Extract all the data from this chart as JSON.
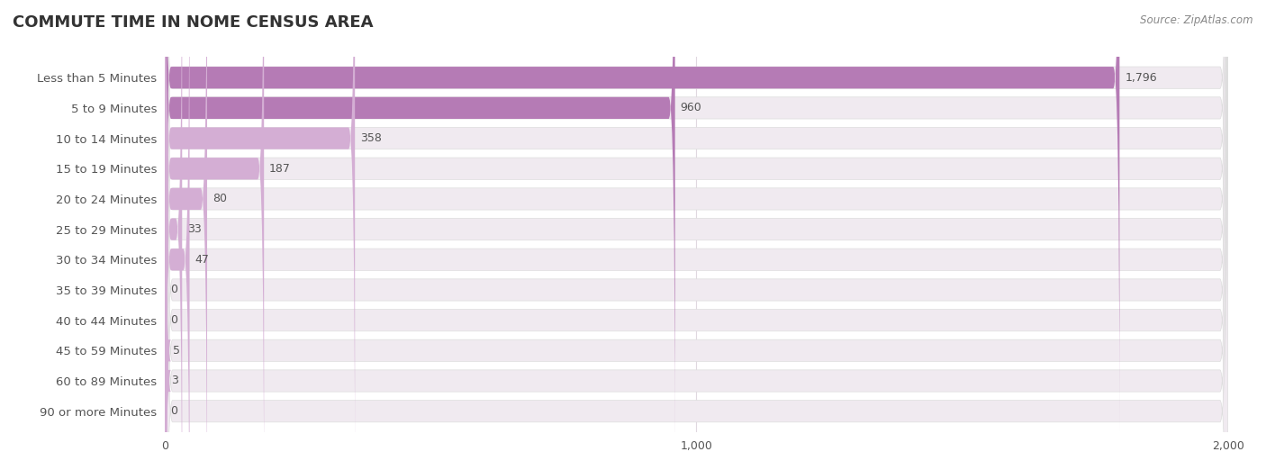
{
  "title": "COMMUTE TIME IN NOME CENSUS AREA",
  "source": "Source: ZipAtlas.com",
  "categories": [
    "Less than 5 Minutes",
    "5 to 9 Minutes",
    "10 to 14 Minutes",
    "15 to 19 Minutes",
    "20 to 24 Minutes",
    "25 to 29 Minutes",
    "30 to 34 Minutes",
    "35 to 39 Minutes",
    "40 to 44 Minutes",
    "45 to 59 Minutes",
    "60 to 89 Minutes",
    "90 or more Minutes"
  ],
  "values": [
    1796,
    960,
    358,
    187,
    80,
    33,
    47,
    0,
    0,
    5,
    3,
    0
  ],
  "bar_color_dark": "#b57bb5",
  "bar_color_light": "#d4aed4",
  "bar_bg_color": "#f0eaf0",
  "row_bg_color_1": "#f9f7f9",
  "row_bg_color_2": "#f2eef2",
  "grid_color": "#e0d8e0",
  "title_color": "#333333",
  "label_color": "#555555",
  "value_color": "#555555",
  "source_color": "#888888",
  "xlim": [
    0,
    2000
  ],
  "xticks": [
    0,
    1000,
    2000
  ],
  "background_color": "#ffffff"
}
